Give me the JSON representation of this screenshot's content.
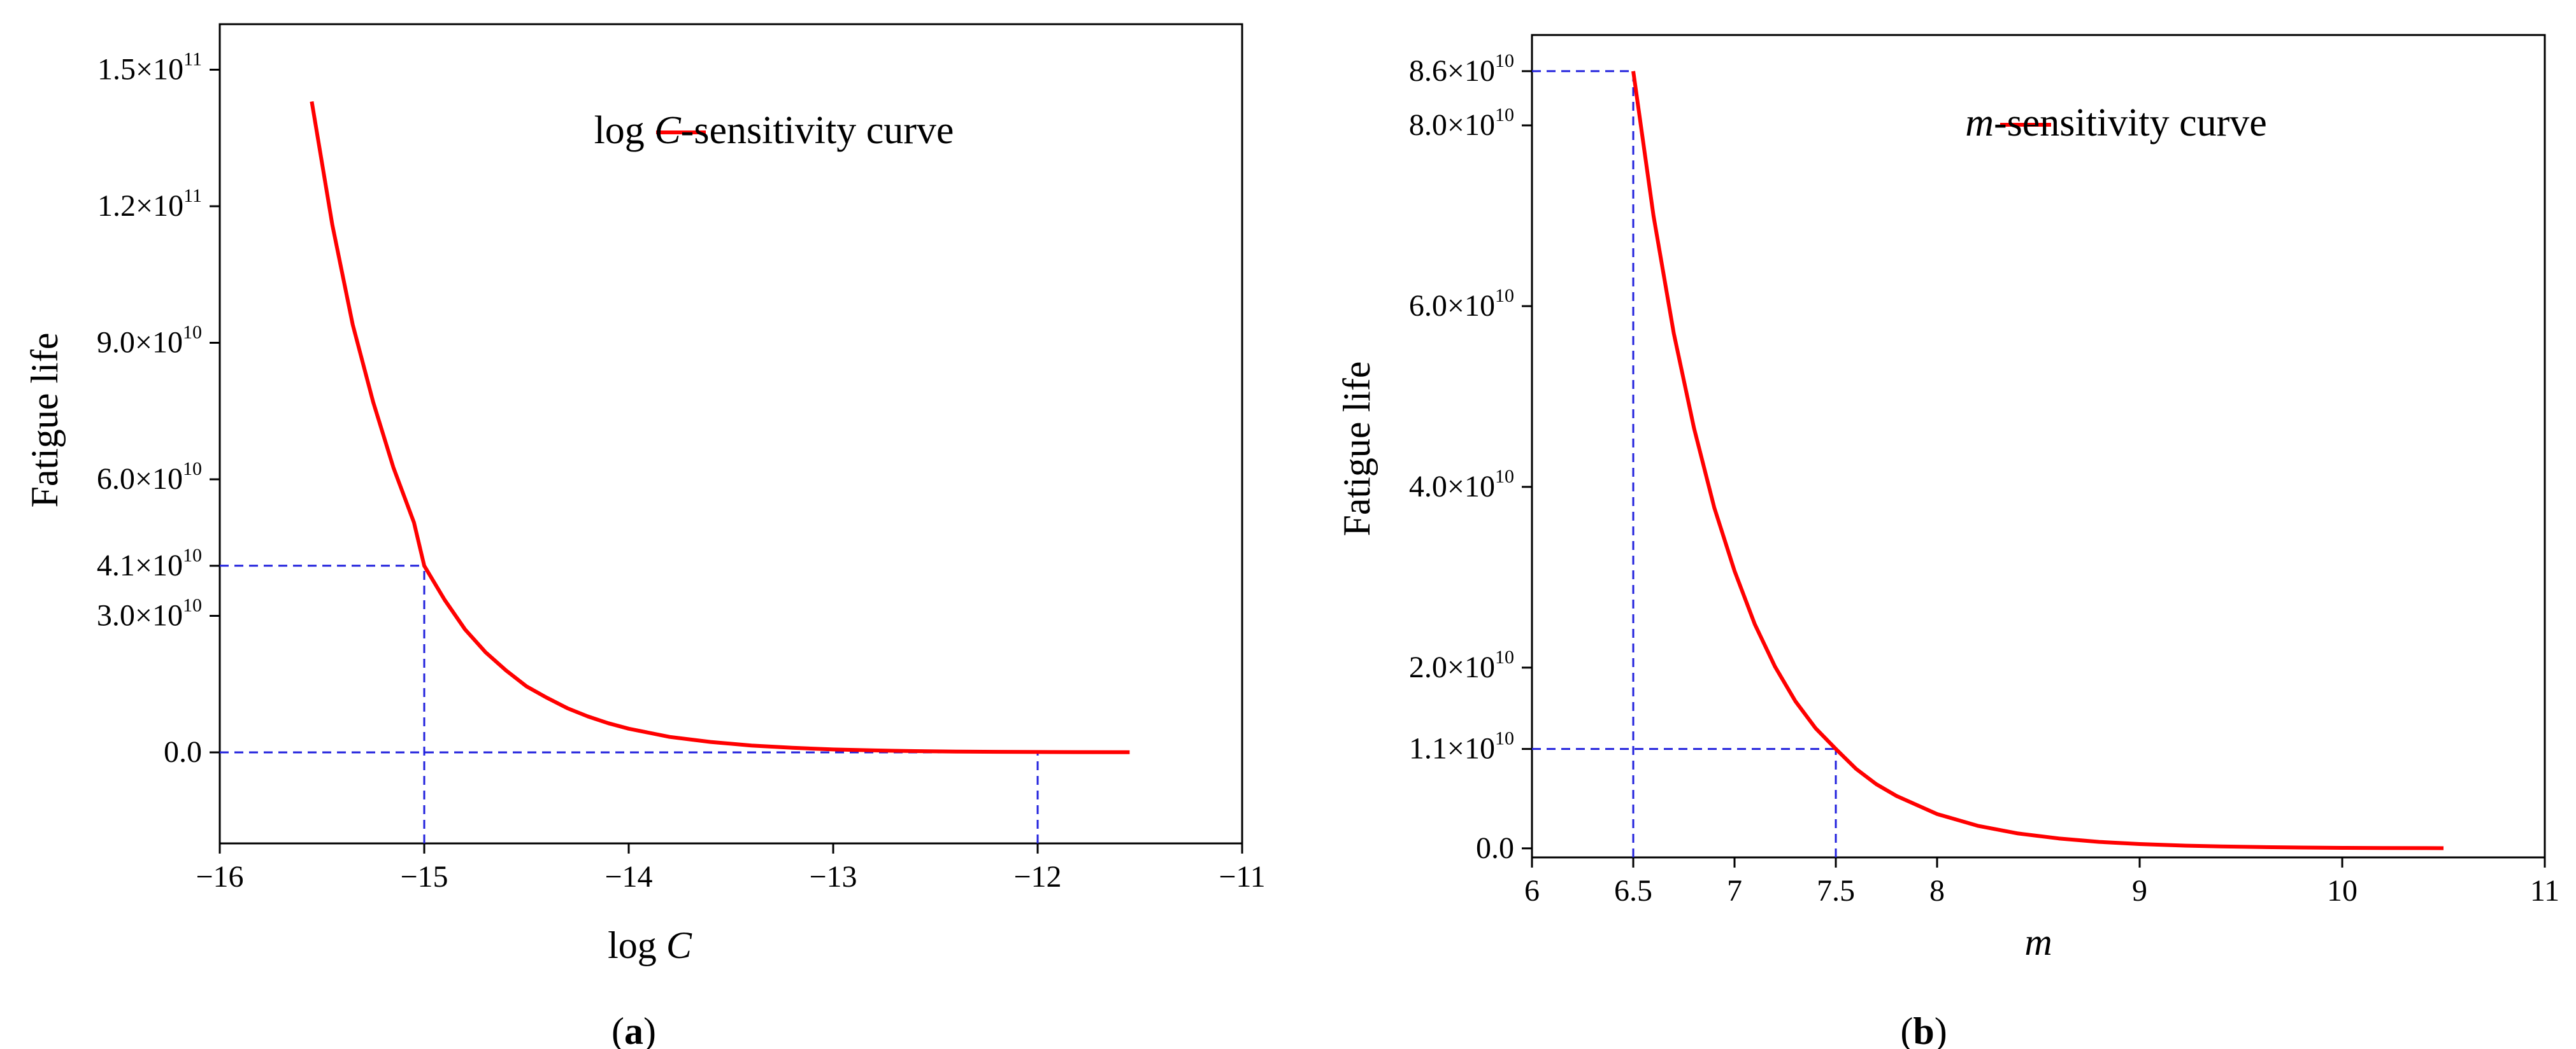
{
  "colors": {
    "curve": "#ff0000",
    "guide": "#2222dd",
    "axis": "#000000"
  },
  "chart_data": [
    {
      "id": "a",
      "type": "line",
      "panel_label": "a",
      "xlabel": "log",
      "xlabel_var": "C",
      "ylabel": "Fatigue life",
      "xlim": [
        -16,
        -11
      ],
      "ylim": [
        -20000000000,
        160000000000
      ],
      "xticks": [
        {
          "value": -16,
          "label": "−16"
        },
        {
          "value": -15,
          "label": "−15"
        },
        {
          "value": -14,
          "label": "−14"
        },
        {
          "value": -13,
          "label": "−13"
        },
        {
          "value": -12,
          "label": "−12"
        },
        {
          "value": -11,
          "label": "−11"
        }
      ],
      "yticks": [
        {
          "value": 0,
          "mant": "0.0",
          "exp": ""
        },
        {
          "value": 30000000000,
          "mant": "3.0×10",
          "exp": "10"
        },
        {
          "value": 41000000000,
          "mant": "4.1×10",
          "exp": "10"
        },
        {
          "value": 60000000000,
          "mant": "6.0×10",
          "exp": "10"
        },
        {
          "value": 90000000000,
          "mant": "9.0×10",
          "exp": "10"
        },
        {
          "value": 120000000000,
          "mant": "1.2×10",
          "exp": "11"
        },
        {
          "value": 150000000000,
          "mant": "1.5×10",
          "exp": "11"
        }
      ],
      "legend": {
        "text_pre": "log ",
        "text_var": "C",
        "text_post": "-sensitivity curve",
        "position": "top-right"
      },
      "series": [
        {
          "name": "log C-sensitivity curve",
          "x": [
            -15.55,
            -15.45,
            -15.35,
            -15.25,
            -15.15,
            -15.05,
            -15.0,
            -14.9,
            -14.8,
            -14.7,
            -14.6,
            -14.5,
            -14.4,
            -14.3,
            -14.2,
            -14.1,
            -14.0,
            -13.8,
            -13.6,
            -13.4,
            -13.2,
            -13.0,
            -12.8,
            -12.6,
            -12.4,
            -12.2,
            -12.0,
            -11.8,
            -11.55
          ],
          "y": [
            143000000000,
            116000000000,
            94000000000,
            77000000000,
            62500000000,
            50500000000,
            41000000000,
            33500000000,
            27000000000,
            22000000000,
            18000000000,
            14500000000,
            12000000000,
            9700000000,
            7900000000,
            6400000000,
            5200000000,
            3400000000,
            2300000000,
            1500000000,
            1000000000,
            650000000,
            430000000,
            280000000,
            180000000,
            120000000,
            80000000,
            50000000,
            30000000
          ]
        }
      ],
      "guides": [
        {
          "points": [
            [
              -15,
              -20000000000
            ],
            [
              -15,
              41000000000
            ]
          ]
        },
        {
          "points": [
            [
              -16,
              41000000000
            ],
            [
              -15,
              41000000000
            ]
          ]
        },
        {
          "points": [
            [
              -16,
              0
            ],
            [
              -12,
              0
            ]
          ]
        },
        {
          "points": [
            [
              -12,
              -20000000000
            ],
            [
              -12,
              0
            ]
          ]
        }
      ]
    },
    {
      "id": "b",
      "type": "line",
      "panel_label": "b",
      "xlabel": "",
      "xlabel_var": "m",
      "ylabel": "Fatigue life",
      "xlim": [
        6,
        11
      ],
      "ylim": [
        -1000000000,
        90000000000
      ],
      "xticks": [
        {
          "value": 6,
          "label": "6"
        },
        {
          "value": 6.5,
          "label": "6.5"
        },
        {
          "value": 7,
          "label": "7"
        },
        {
          "value": 7.5,
          "label": "7.5"
        },
        {
          "value": 8,
          "label": "8"
        },
        {
          "value": 9,
          "label": "9"
        },
        {
          "value": 10,
          "label": "10"
        },
        {
          "value": 11,
          "label": "11"
        }
      ],
      "yticks": [
        {
          "value": 0,
          "mant": "0.0",
          "exp": ""
        },
        {
          "value": 11000000000,
          "mant": "1.1×10",
          "exp": "10"
        },
        {
          "value": 20000000000,
          "mant": "2.0×10",
          "exp": "10"
        },
        {
          "value": 40000000000,
          "mant": "4.0×10",
          "exp": "10"
        },
        {
          "value": 60000000000,
          "mant": "6.0×10",
          "exp": "10"
        },
        {
          "value": 80000000000,
          "mant": "8.0×10",
          "exp": "10"
        },
        {
          "value": 86000000000,
          "mant": "8.6×10",
          "exp": "10"
        }
      ],
      "legend": {
        "text_pre": "",
        "text_var": "m",
        "text_post": "-sensitivity curve",
        "position": "top-right"
      },
      "series": [
        {
          "name": "m-sensitivity curve",
          "x": [
            6.5,
            6.6,
            6.7,
            6.8,
            6.9,
            7.0,
            7.1,
            7.2,
            7.3,
            7.4,
            7.5,
            7.6,
            7.7,
            7.8,
            8.0,
            8.2,
            8.4,
            8.6,
            8.8,
            9.0,
            9.2,
            9.4,
            9.6,
            9.8,
            10.0,
            10.2,
            10.5
          ],
          "y": [
            86000000000,
            70000000000,
            57000000000,
            46500000000,
            37700000000,
            30700000000,
            24800000000,
            20100000000,
            16300000000,
            13300000000,
            11000000000,
            8800000000,
            7100000000,
            5800000000,
            3800000000,
            2500000000,
            1650000000,
            1100000000,
            720000000,
            480000000,
            320000000,
            210000000,
            140000000,
            90000000,
            60000000,
            40000000,
            20000000
          ]
        }
      ],
      "guides": [
        {
          "points": [
            [
              6,
              86000000000
            ],
            [
              6.5,
              86000000000
            ]
          ]
        },
        {
          "points": [
            [
              6.5,
              -1000000000
            ],
            [
              6.5,
              86000000000
            ]
          ]
        },
        {
          "points": [
            [
              6,
              11000000000
            ],
            [
              7.5,
              11000000000
            ]
          ]
        },
        {
          "points": [
            [
              7.5,
              -1000000000
            ],
            [
              7.5,
              11000000000
            ]
          ]
        }
      ]
    }
  ]
}
